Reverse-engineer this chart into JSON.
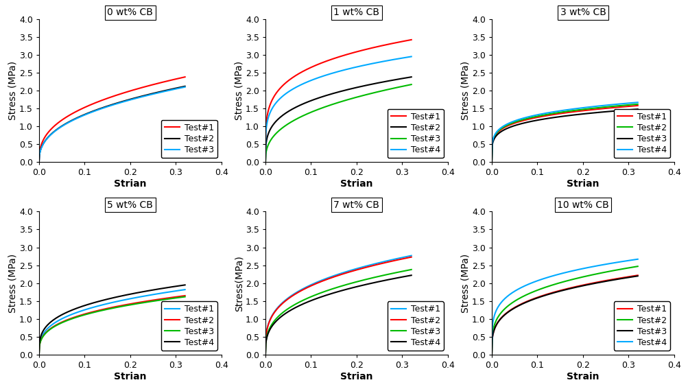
{
  "panels": [
    {
      "title": "0 wt% CB",
      "xlabel": "Strian",
      "ylabel": "Stress (MPa)",
      "ylim": [
        0,
        4
      ],
      "yticks": [
        0,
        0.5,
        1,
        1.5,
        2,
        2.5,
        3,
        3.5,
        4
      ],
      "xlim": [
        0,
        0.4
      ],
      "xticks": [
        0,
        0.1,
        0.2,
        0.3,
        0.4
      ],
      "curves": [
        {
          "color": "#FF0000",
          "label": "Test#1",
          "A": 2.38,
          "power": 0.38
        },
        {
          "color": "#000000",
          "label": "Test#2",
          "A": 2.12,
          "power": 0.4
        },
        {
          "color": "#00AAFF",
          "label": "Test#3",
          "A": 2.1,
          "power": 0.4
        }
      ],
      "legend_tests": 3,
      "legend_loc": "lower right"
    },
    {
      "title": "1 wt% CB",
      "xlabel": "Strian",
      "ylabel": "Stress (MPa)",
      "ylim": [
        0,
        4
      ],
      "yticks": [
        0,
        0.5,
        1,
        1.5,
        2,
        2.5,
        3,
        3.5,
        4
      ],
      "xlim": [
        0,
        0.4
      ],
      "xticks": [
        0,
        0.1,
        0.2,
        0.3,
        0.4
      ],
      "curves": [
        {
          "color": "#FF0000",
          "label": "Test#1",
          "A": 3.42,
          "power": 0.22
        },
        {
          "color": "#000000",
          "label": "Test#2",
          "A": 2.38,
          "power": 0.28
        },
        {
          "color": "#00BB00",
          "label": "Test#3",
          "A": 2.17,
          "power": 0.38
        },
        {
          "color": "#00AAFF",
          "label": "Test#4",
          "A": 2.95,
          "power": 0.22
        }
      ],
      "legend_tests": 4,
      "legend_loc": "lower right"
    },
    {
      "title": "3 wt% CB",
      "xlabel": "Strian",
      "ylabel": "Stress (MPa)",
      "ylim": [
        0,
        4
      ],
      "yticks": [
        0,
        0.5,
        1,
        1.5,
        2,
        2.5,
        3,
        3.5,
        4
      ],
      "xlim": [
        0,
        0.4
      ],
      "xticks": [
        0,
        0.1,
        0.2,
        0.3,
        0.4
      ],
      "curves": [
        {
          "color": "#FF0000",
          "label": "Test#1",
          "A": 1.58,
          "power": 0.2
        },
        {
          "color": "#00BB00",
          "label": "Test#2",
          "A": 1.62,
          "power": 0.2
        },
        {
          "color": "#000000",
          "label": "Test#3",
          "A": 1.48,
          "power": 0.2
        },
        {
          "color": "#00AAFF",
          "label": "Test#4",
          "A": 1.67,
          "power": 0.2
        }
      ],
      "legend_tests": 4,
      "legend_loc": "lower right"
    },
    {
      "title": "5 wt% CB",
      "xlabel": "Strian",
      "ylabel": "Stress (MPa)",
      "ylim": [
        0,
        4
      ],
      "yticks": [
        0,
        0.5,
        1,
        1.5,
        2,
        2.5,
        3,
        3.5,
        4
      ],
      "xlim": [
        0,
        0.4
      ],
      "xticks": [
        0,
        0.1,
        0.2,
        0.3,
        0.4
      ],
      "curves": [
        {
          "color": "#00AAFF",
          "label": "Test#1",
          "A": 1.82,
          "power": 0.32
        },
        {
          "color": "#FF0000",
          "label": "Test#2",
          "A": 1.65,
          "power": 0.32
        },
        {
          "color": "#00BB00",
          "label": "Test#3",
          "A": 1.62,
          "power": 0.32
        },
        {
          "color": "#000000",
          "label": "Test#4",
          "A": 1.95,
          "power": 0.3
        }
      ],
      "legend_tests": 4,
      "legend_loc": "lower right"
    },
    {
      "title": "7 wt% CB",
      "xlabel": "Strian",
      "ylabel": "Stress(MPa)",
      "ylim": [
        0,
        4
      ],
      "yticks": [
        0,
        0.5,
        1,
        1.5,
        2,
        2.5,
        3,
        3.5,
        4
      ],
      "xlim": [
        0,
        0.4
      ],
      "xticks": [
        0,
        0.1,
        0.2,
        0.3,
        0.4
      ],
      "curves": [
        {
          "color": "#00AAFF",
          "label": "Test#1",
          "A": 2.77,
          "power": 0.3
        },
        {
          "color": "#FF0000",
          "label": "Test#2",
          "A": 2.73,
          "power": 0.3
        },
        {
          "color": "#00BB00",
          "label": "Test#3",
          "A": 2.38,
          "power": 0.33
        },
        {
          "color": "#000000",
          "label": "Test#4",
          "A": 2.22,
          "power": 0.33
        }
      ],
      "legend_tests": 4,
      "legend_loc": "lower right"
    },
    {
      "title": "10 wt% CB",
      "xlabel": "Strain",
      "ylabel": "Stress (MPa)",
      "ylim": [
        0,
        4
      ],
      "yticks": [
        0,
        0.5,
        1,
        1.5,
        2,
        2.5,
        3,
        3.5,
        4
      ],
      "xlim": [
        0,
        0.4
      ],
      "xticks": [
        0,
        0.1,
        0.2,
        0.3,
        0.4
      ],
      "curves": [
        {
          "color": "#FF0000",
          "label": "Test#1",
          "A": 2.22,
          "power": 0.28
        },
        {
          "color": "#00BB00",
          "label": "Test#2",
          "A": 2.47,
          "power": 0.27
        },
        {
          "color": "#000000",
          "label": "Test#3",
          "A": 2.2,
          "power": 0.28
        },
        {
          "color": "#00AAFF",
          "label": "Test#4",
          "A": 2.67,
          "power": 0.22
        }
      ],
      "legend_tests": 4,
      "legend_loc": "lower right"
    }
  ],
  "background_color": "#FFFFFF",
  "title_fontsize": 10,
  "axis_label_fontsize": 10,
  "tick_fontsize": 9,
  "legend_fontsize": 9,
  "linewidth": 1.5
}
